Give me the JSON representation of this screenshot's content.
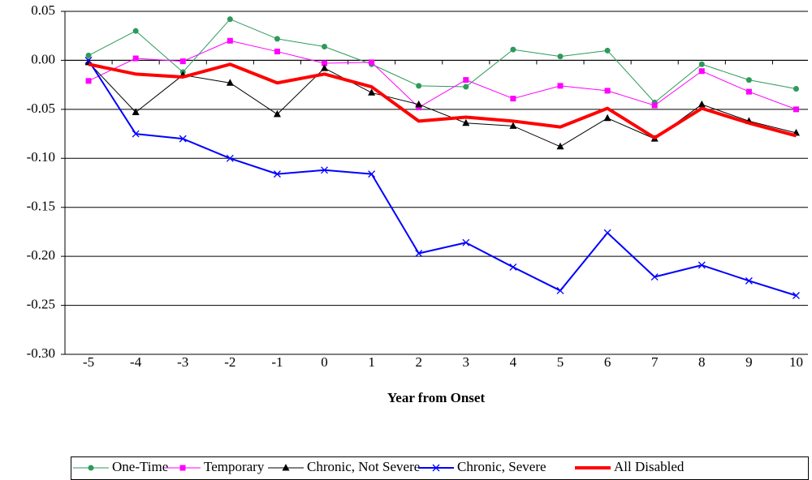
{
  "chart_data": {
    "type": "line",
    "categories": [
      -5,
      -4,
      -3,
      -2,
      -1,
      0,
      1,
      2,
      3,
      4,
      5,
      6,
      7,
      8,
      9,
      10
    ],
    "x_label": "Year from Onset",
    "ylim": [
      -0.3,
      0.05
    ],
    "yticks": [
      0.05,
      {
        "value": 0,
        "label": "0.00"
      },
      -0.05,
      {
        "value": -0.1,
        "label": "-0.10"
      },
      -0.15,
      {
        "value": -0.2,
        "label": "-0.20"
      },
      -0.25,
      {
        "value": -0.3,
        "label": "-0.30"
      }
    ],
    "grid": true,
    "legend": "bottom",
    "series": [
      {
        "name": "One-Time",
        "color": "#2e9a5a",
        "marker": "circle",
        "width": 1,
        "values": [
          0.005,
          0.03,
          -0.012,
          0.042,
          0.022,
          0.014,
          -0.004,
          -0.026,
          -0.027,
          0.011,
          0.004,
          0.01,
          -0.043,
          -0.004,
          -0.02,
          -0.029
        ]
      },
      {
        "name": "Temporary",
        "color": "#ff00ff",
        "marker": "square",
        "width": 1,
        "values": [
          -0.021,
          0.002,
          -0.001,
          0.02,
          0.009,
          -0.003,
          -0.002,
          -0.048,
          -0.02,
          -0.039,
          -0.026,
          -0.031,
          -0.046,
          -0.011,
          -0.032,
          -0.05
        ]
      },
      {
        "name": "Chronic, Not Severe",
        "color": "#000000",
        "marker": "triangle",
        "width": 1,
        "values": [
          -0.002,
          -0.053,
          -0.015,
          -0.023,
          -0.055,
          -0.008,
          -0.033,
          -0.045,
          -0.064,
          -0.067,
          -0.088,
          -0.059,
          -0.08,
          -0.045,
          -0.062,
          -0.074
        ]
      },
      {
        "name": "Chronic, Severe",
        "color": "#0000ff",
        "marker": "x",
        "width": 2,
        "values": [
          0.0,
          -0.075,
          -0.08,
          -0.1,
          -0.116,
          -0.112,
          -0.116,
          -0.197,
          -0.186,
          -0.211,
          -0.235,
          -0.176,
          -0.221,
          -0.209,
          -0.225,
          -0.24
        ]
      },
      {
        "name": "All Disabled",
        "color": "#ff0000",
        "marker": "none",
        "width": 4,
        "values": [
          -0.004,
          -0.014,
          -0.017,
          -0.004,
          -0.023,
          -0.014,
          -0.027,
          -0.062,
          -0.058,
          -0.062,
          -0.068,
          -0.049,
          -0.079,
          -0.049,
          -0.064,
          -0.077
        ]
      }
    ]
  }
}
